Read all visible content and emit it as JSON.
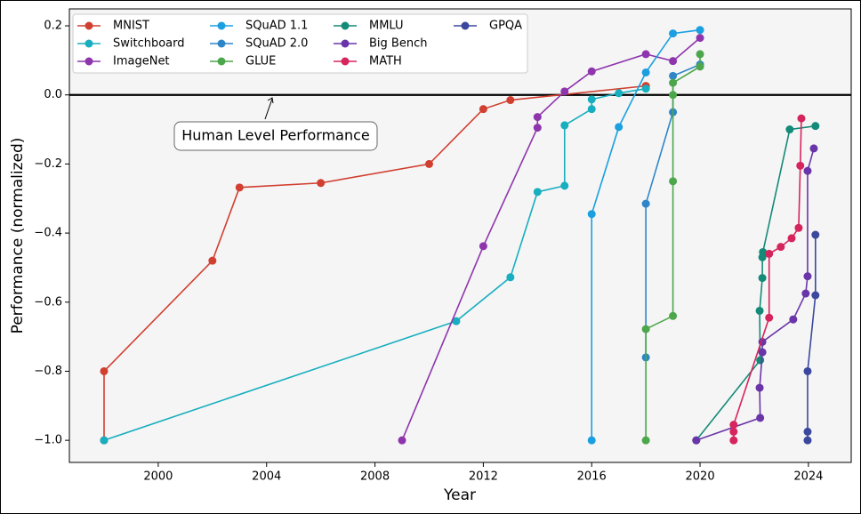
{
  "chart_data": {
    "type": "line",
    "xlabel": "Year",
    "ylabel": "Performance (normalized)",
    "xlim": [
      1996.72,
      2025.58
    ],
    "ylim": [
      -1.064,
      0.249
    ],
    "xticks": [
      2000,
      2004,
      2008,
      2012,
      2016,
      2020,
      2024
    ],
    "yticks": [
      {
        "value": -1.0,
        "label": "−1.0"
      },
      {
        "value": -0.8,
        "label": "−0.8"
      },
      {
        "value": -0.6,
        "label": "−0.6"
      },
      {
        "value": -0.4,
        "label": "−0.4"
      },
      {
        "value": -0.2,
        "label": "−0.2"
      },
      {
        "value": 0.0,
        "label": "0.0"
      },
      {
        "value": 0.2,
        "label": "0.2"
      }
    ],
    "hline": 0,
    "annotation": "Human Level Performance",
    "legend": "upper left",
    "series": [
      {
        "name": "MNIST",
        "color": "#d13f30",
        "x": [
          1998,
          1998,
          2002,
          2003,
          2006,
          2010,
          2012,
          2013,
          2018
        ],
        "values": [
          -1.0,
          -0.8,
          -0.48,
          -0.268,
          -0.255,
          -0.2,
          -0.041,
          -0.015,
          0.026
        ]
      },
      {
        "name": "Switchboard",
        "color": "#17aebf",
        "x": [
          1998,
          2011,
          2013,
          2014,
          2015,
          2015,
          2016,
          2016,
          2017,
          2018
        ],
        "values": [
          -1.0,
          -0.655,
          -0.528,
          -0.281,
          -0.263,
          -0.088,
          -0.041,
          -0.013,
          0.005,
          0.018
        ]
      },
      {
        "name": "ImageNet",
        "color": "#8e35ad",
        "x": [
          2009,
          2012,
          2014,
          2014,
          2015,
          2016,
          2018,
          2019,
          2020
        ],
        "values": [
          -1.0,
          -0.438,
          -0.095,
          -0.064,
          0.01,
          0.068,
          0.118,
          0.098,
          0.165
        ]
      },
      {
        "name": "SQuAD 1.1",
        "color": "#1a9fe0",
        "x": [
          2016,
          2016,
          2017,
          2018,
          2019,
          2020
        ],
        "values": [
          -1.0,
          -0.345,
          -0.093,
          0.065,
          0.178,
          0.188
        ]
      },
      {
        "name": "SQuAD 2.0",
        "color": "#2e86c8",
        "x": [
          2018,
          2018,
          2019,
          2019,
          2020
        ],
        "values": [
          -0.76,
          -0.315,
          -0.05,
          0.055,
          0.088
        ]
      },
      {
        "name": "GLUE",
        "color": "#4ca64c",
        "x": [
          2018,
          2018,
          2019,
          2019,
          2019,
          2019,
          2020,
          2020
        ],
        "values": [
          -1.0,
          -0.678,
          -0.64,
          -0.25,
          0.0,
          0.035,
          0.082,
          0.118
        ]
      },
      {
        "name": "MMLU",
        "color": "#148a78",
        "x": [
          2019.86,
          2022.22,
          2022.2,
          2022.3,
          2022.3,
          2022.32,
          2023.31,
          2024.26
        ],
        "values": [
          -1.0,
          -0.768,
          -0.625,
          -0.53,
          -0.47,
          -0.455,
          -0.1,
          -0.09
        ]
      },
      {
        "name": "Big Bench",
        "color": "#6a35a8",
        "x": [
          2019.86,
          2022.22,
          2022.2,
          2022.3,
          2022.3,
          2023.44,
          2023.9,
          2023.97,
          2023.97,
          2024.2
        ],
        "values": [
          -1.0,
          -0.935,
          -0.848,
          -0.745,
          -0.715,
          -0.65,
          -0.575,
          -0.525,
          -0.22,
          -0.155
        ]
      },
      {
        "name": "MATH",
        "color": "#d6245d",
        "x": [
          2021.24,
          2021.24,
          2021.24,
          2022.55,
          2022.55,
          2022.98,
          2023.38,
          2023.64,
          2023.7,
          2023.74
        ],
        "values": [
          -1.0,
          -0.975,
          -0.955,
          -0.645,
          -0.46,
          -0.44,
          -0.415,
          -0.385,
          -0.205,
          -0.068
        ]
      },
      {
        "name": "GPQA",
        "color": "#3b489e",
        "x": [
          2023.97,
          2023.97,
          2023.97,
          2024.26,
          2024.26
        ],
        "values": [
          -1.0,
          -0.975,
          -0.8,
          -0.58,
          -0.405
        ]
      }
    ]
  }
}
